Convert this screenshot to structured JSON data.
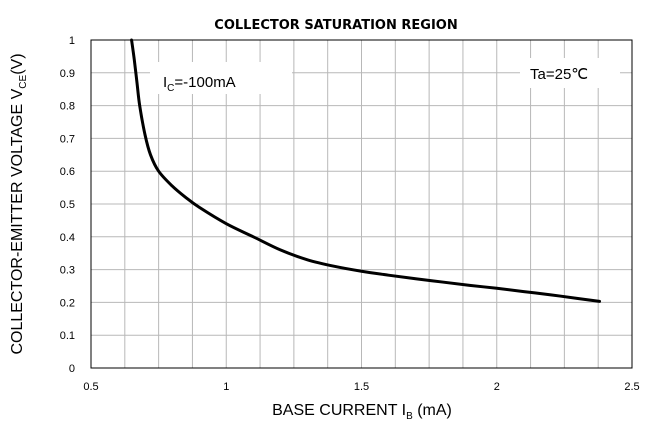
{
  "chart_data": {
    "type": "line",
    "title": "COLLECTOR SATURATION REGION",
    "xlabel": {
      "main": "BASE CURRENT I",
      "sub": "B",
      "unit": " (mA)"
    },
    "ylabel": {
      "main": "COLLECTOR-EMITTER VOLTAGE V",
      "sub": "CE",
      "unit": "(V)"
    },
    "xlim": [
      0.5,
      2.5
    ],
    "ylim": [
      0,
      1
    ],
    "grid": true,
    "x_ticks": [
      0.5,
      1,
      1.5,
      2,
      2.5
    ],
    "x_tick_labels": [
      "0.5",
      "1",
      "1.5",
      "2",
      "2.5"
    ],
    "x_minor_gridlines": [
      0.625,
      0.75,
      0.875,
      1.125,
      1.25,
      1.375,
      1.625,
      1.75,
      1.875,
      2.125,
      2.25,
      2.375
    ],
    "y_ticks": [
      0,
      0.1,
      0.2,
      0.3,
      0.4,
      0.5,
      0.6,
      0.7,
      0.8,
      0.9,
      1
    ],
    "y_tick_labels": [
      "0",
      "0.1",
      "0.2",
      "0.3",
      "0.4",
      "0.5",
      "0.6",
      "0.7",
      "0.8",
      "0.9",
      "1"
    ],
    "annotations": [
      {
        "main": "I",
        "sub": "C",
        "rest": "=-100mA"
      },
      {
        "text": "Ta=25℃"
      }
    ],
    "series": [
      {
        "x": [
          0.65,
          0.66,
          0.67,
          0.68,
          0.7,
          0.72,
          0.75,
          0.8,
          0.85,
          0.9,
          1.0,
          1.1,
          1.2,
          1.3,
          1.4,
          1.5,
          1.6,
          1.7,
          1.8,
          1.9,
          2.0,
          2.1,
          2.2,
          2.3,
          2.38
        ],
        "y": [
          1.0,
          0.94,
          0.87,
          0.8,
          0.71,
          0.65,
          0.6,
          0.555,
          0.52,
          0.49,
          0.44,
          0.4,
          0.36,
          0.33,
          0.31,
          0.295,
          0.283,
          0.272,
          0.262,
          0.252,
          0.243,
          0.233,
          0.223,
          0.212,
          0.203
        ]
      }
    ]
  }
}
